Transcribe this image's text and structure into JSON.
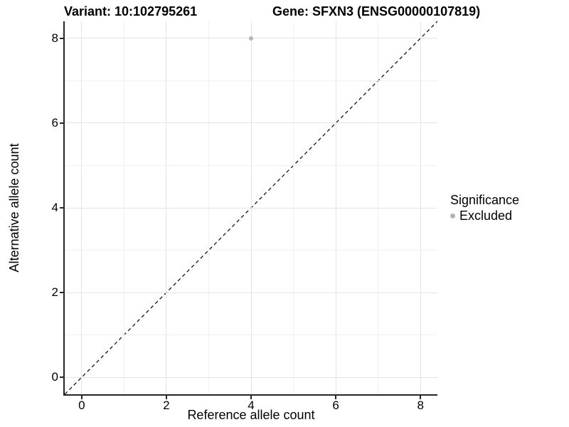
{
  "title": {
    "variant": "Variant: 10:102795261",
    "gene": "Gene: SFXN3 (ENSG00000107819)"
  },
  "chart_data": {
    "type": "scatter",
    "title": "Variant: 10:102795261  |  Gene: SFXN3 (ENSG00000107819)",
    "xlabel": "Reference allele count",
    "ylabel": "Alternative allele count",
    "xlim": [
      -0.4,
      8.4
    ],
    "ylim": [
      -0.4,
      8.4
    ],
    "x_ticks": [
      0,
      2,
      4,
      6,
      8
    ],
    "y_ticks": [
      0,
      2,
      4,
      6,
      8
    ],
    "grid": "major and minor gridlines on white background",
    "legend": {
      "title": "Significance",
      "position": "right",
      "entries": [
        {
          "label": "Excluded",
          "color": "#b3b3b3"
        }
      ]
    },
    "series": [
      {
        "name": "Excluded",
        "color": "#b3b3b3",
        "marker_diameter_px": 6,
        "points": [
          {
            "x": 4,
            "y": 8
          }
        ]
      }
    ],
    "identity_line": {
      "style": "dashed",
      "color": "#000000",
      "from": [
        -0.4,
        -0.4
      ],
      "to": [
        8.4,
        8.4
      ]
    }
  },
  "colors": {
    "background": "#ffffff",
    "grid_major": "#e4e4e4",
    "grid_minor": "#f0f0f0",
    "axis_line": "#262626",
    "text": "#000000"
  }
}
